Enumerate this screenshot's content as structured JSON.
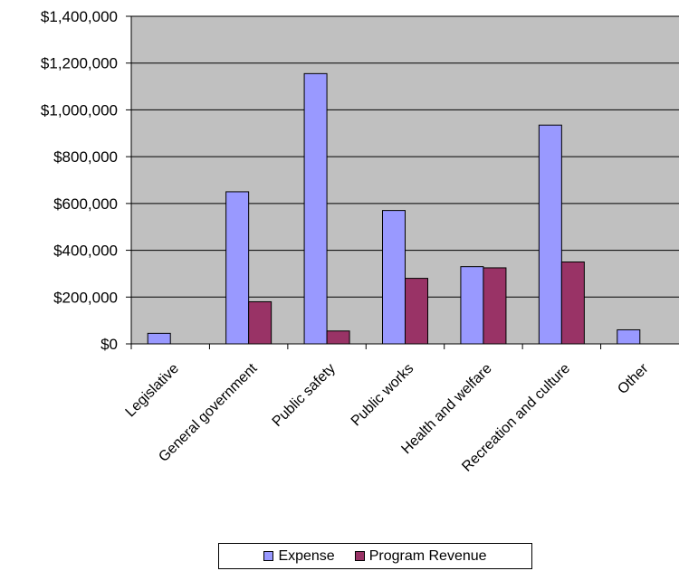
{
  "chart_data": {
    "type": "bar",
    "categories": [
      "Legislative",
      "General government",
      "Public safety",
      "Public works",
      "Health and welfare",
      "Recreation and culture",
      "Other"
    ],
    "series": [
      {
        "name": "Expense",
        "color": "#9999FF",
        "values": [
          45000,
          650000,
          1155000,
          570000,
          330000,
          935000,
          60000
        ]
      },
      {
        "name": "Program Revenue",
        "color": "#993366",
        "values": [
          0,
          180000,
          55000,
          280000,
          325000,
          350000,
          0
        ]
      }
    ],
    "y_ticks": [
      "$0",
      "$200,000",
      "$400,000",
      "$600,000",
      "$800,000",
      "$1,000,000",
      "$1,200,000",
      "$1,400,000"
    ],
    "ylim": [
      0,
      1400000
    ],
    "y_tick_step": 200000,
    "grid": true,
    "plot_background": "#C0C0C0",
    "legend_position": "bottom",
    "title": "",
    "xlabel": "",
    "ylabel": ""
  }
}
